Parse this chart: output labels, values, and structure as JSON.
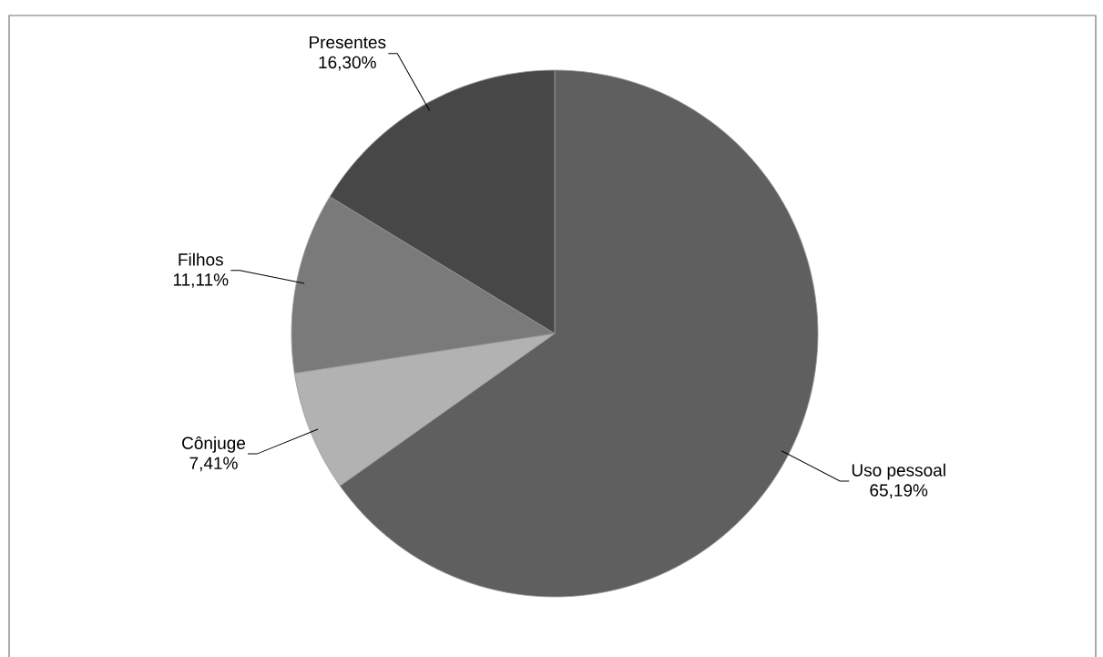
{
  "chart_data": {
    "type": "pie",
    "categories": [
      "Uso pessoal",
      "Cônjuge",
      "Filhos",
      "Presentes"
    ],
    "values": [
      65.19,
      7.41,
      11.11,
      16.3
    ],
    "value_labels": [
      "65,19%",
      "7,41%",
      "11,11%",
      "16,30%"
    ],
    "colors": [
      "#5f5f5f",
      "#b2b2b2",
      "#7a7a7a",
      "#474747"
    ]
  }
}
